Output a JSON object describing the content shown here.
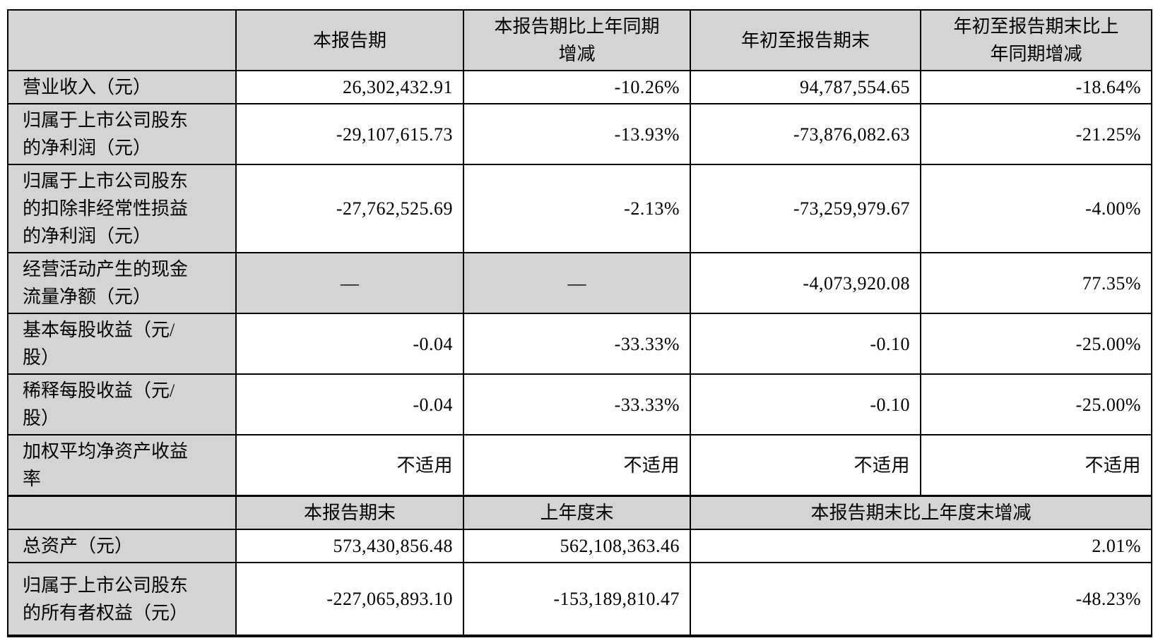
{
  "colors": {
    "header_bg": "#d4d4d4",
    "border": "#000000",
    "page_bg": "#ffffff"
  },
  "table": {
    "section1": {
      "header": {
        "period": "本报告期",
        "period_yoy": "本报告期比上年同期增减",
        "ytd": "年初至报告期末",
        "ytd_yoy": "年初至报告期末比上年同期增减"
      },
      "rows": [
        {
          "label": "营业收入（元）",
          "period": "26,302,432.91",
          "period_yoy": "-10.26%",
          "ytd": "94,787,554.65",
          "ytd_yoy": "-18.64%"
        },
        {
          "label": "归属于上市公司股东的净利润（元）",
          "period": "-29,107,615.73",
          "period_yoy": "-13.93%",
          "ytd": "-73,876,082.63",
          "ytd_yoy": "-21.25%"
        },
        {
          "label": "归属于上市公司股东的扣除非经常性损益的净利润（元）",
          "period": "-27,762,525.69",
          "period_yoy": "-2.13%",
          "ytd": "-73,259,979.67",
          "ytd_yoy": "-4.00%"
        },
        {
          "label": "经营活动产生的现金流量净额（元）",
          "period": "—",
          "period_yoy": "—",
          "ytd": "-4,073,920.08",
          "ytd_yoy": "77.35%"
        },
        {
          "label": "基本每股收益（元/股）",
          "period": "-0.04",
          "period_yoy": "-33.33%",
          "ytd": "-0.10",
          "ytd_yoy": "-25.00%"
        },
        {
          "label": "稀释每股收益（元/股）",
          "period": "-0.04",
          "period_yoy": "-33.33%",
          "ytd": "-0.10",
          "ytd_yoy": "-25.00%"
        },
        {
          "label": "加权平均净资产收益率",
          "period": "不适用",
          "period_yoy": "不适用",
          "ytd": "不适用",
          "ytd_yoy": "不适用"
        }
      ]
    },
    "section2": {
      "header": {
        "end_period": "本报告期末",
        "prev_year_end": "上年度末",
        "change": "本报告期末比上年度末增减"
      },
      "rows": [
        {
          "label": "总资产（元）",
          "end_period": "573,430,856.48",
          "prev_year_end": "562,108,363.46",
          "change": "2.01%"
        },
        {
          "label": "归属于上市公司股东的所有者权益（元）",
          "end_period": "-227,065,893.10",
          "prev_year_end": "-153,189,810.47",
          "change": "-48.23%"
        }
      ]
    }
  }
}
